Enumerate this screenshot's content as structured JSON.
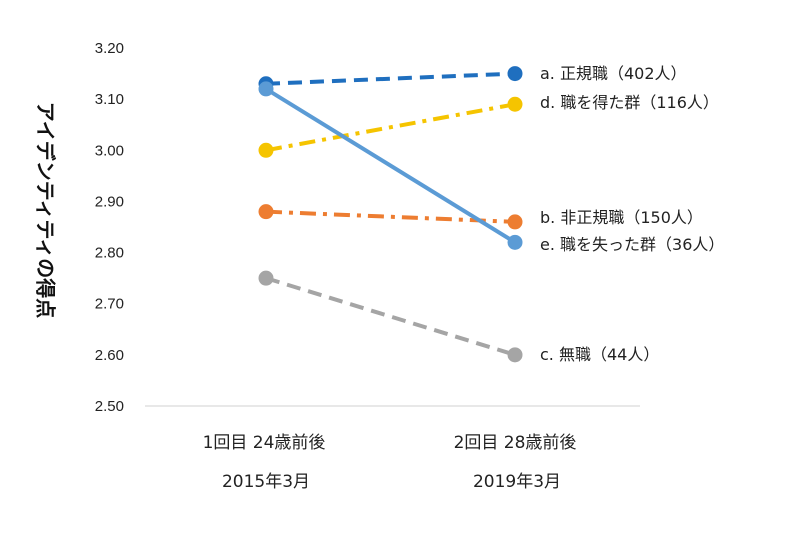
{
  "chart_data": {
    "type": "line",
    "ylabel": "アイデンティティの得点",
    "ylim": [
      2.5,
      3.2
    ],
    "yticks": [
      "2.50",
      "2.60",
      "2.70",
      "2.80",
      "2.90",
      "3.00",
      "3.10",
      "3.20"
    ],
    "categories": [
      {
        "line1": "1回目 24歳前後",
        "line2": "2015年3月"
      },
      {
        "line1": "2回目 28歳前後",
        "line2": "2019年3月"
      }
    ],
    "series": [
      {
        "name": "a. 正規職（402人）",
        "values": [
          3.13,
          3.15
        ],
        "color": "#1f6fbf",
        "dash": "dash"
      },
      {
        "name": "d. 職を得た群（116人）",
        "values": [
          3.0,
          3.09
        ],
        "color": "#f5c400",
        "dash": "dashdot"
      },
      {
        "name": "b. 非正規職（150人）",
        "values": [
          2.88,
          2.86
        ],
        "color": "#ed7d31",
        "dash": "dashdot"
      },
      {
        "name": "e. 職を失った群（36人）",
        "values": [
          3.12,
          2.82
        ],
        "color": "#5b9bd5",
        "dash": "solid"
      },
      {
        "name": "c. 無職（44人）",
        "values": [
          2.75,
          2.6
        ],
        "color": "#a5a5a5",
        "dash": "dash"
      }
    ],
    "grid": false,
    "legend": "right-of-endpoints"
  }
}
